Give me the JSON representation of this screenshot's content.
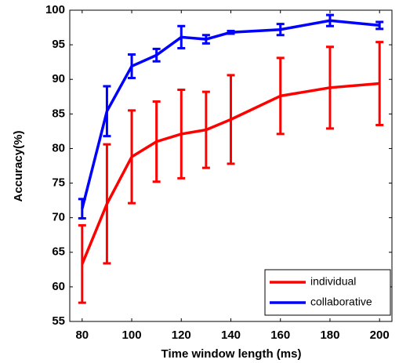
{
  "chart_data": {
    "type": "line",
    "x_label": "Time window length (ms)",
    "y_label": "Accuracy(%)",
    "x": [
      80,
      90,
      100,
      110,
      120,
      130,
      140,
      160,
      180,
      200
    ],
    "series": [
      {
        "name": "individual",
        "color": "#ff0000",
        "values": [
          63.3,
          72,
          78.8,
          81,
          82.1,
          82.7,
          84.2,
          87.6,
          88.8,
          89.4
        ],
        "errors": [
          5.6,
          8.6,
          6.7,
          5.8,
          6.4,
          5.5,
          6.4,
          5.5,
          5.9,
          6
        ]
      },
      {
        "name": "collaborative",
        "color": "#0000ff",
        "values": [
          71.3,
          85.4,
          91.9,
          93.5,
          96.1,
          95.8,
          96.8,
          97.2,
          98.5,
          97.8
        ],
        "errors": [
          1.4,
          3.6,
          1.7,
          0.9,
          1.6,
          0.6,
          0.2,
          0.8,
          0.8,
          0.5
        ]
      }
    ],
    "xlim": [
      75,
      205
    ],
    "xticks": [
      80,
      100,
      120,
      140,
      160,
      180,
      200
    ],
    "ylim": [
      55,
      100
    ],
    "yticks": [
      55,
      60,
      65,
      70,
      75,
      80,
      85,
      90,
      95,
      100
    ],
    "legend": "lower right"
  }
}
